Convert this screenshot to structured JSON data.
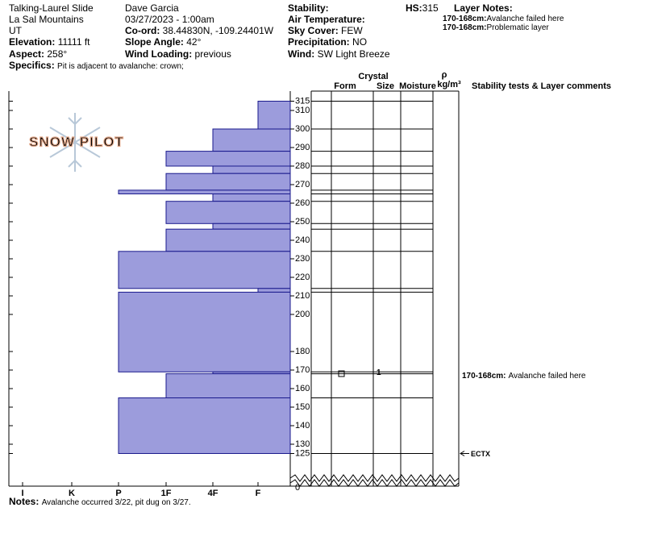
{
  "header": {
    "pit_name": "Talking-Laurel Slide",
    "range": "La Sal Mountains",
    "state": "UT",
    "elevation": {
      "label": "Elevation:",
      "value": "11111 ft"
    },
    "aspect": {
      "label": "Aspect:",
      "value": "258°"
    },
    "observer": "Dave Garcia",
    "datetime": "03/27/2023 - 1:00am",
    "coord": {
      "label": "Co-ord:",
      "value": "38.44830N, -109.24401W"
    },
    "slope": {
      "label": "Slope Angle:",
      "value": "42°"
    },
    "wind_loading": {
      "label": "Wind Loading:",
      "value": "previous"
    },
    "stability": {
      "label": "Stability:"
    },
    "air_temperature": {
      "label": "Air Temperature:"
    },
    "sky": {
      "label": "Sky Cover:",
      "value": "FEW"
    },
    "precip": {
      "label": "Precipitation:",
      "value": "NO"
    },
    "wind": {
      "label": "Wind:",
      "value": "SW Light Breeze"
    },
    "hs": {
      "label": "HS:",
      "value": 315
    },
    "specifics": {
      "label": "Specifics:",
      "value": "Pit is adjacent to avalanche: crown;"
    }
  },
  "layer_notes": {
    "title": "Layer Notes:",
    "items": [
      {
        "range": "170-168cm:",
        "text": "Avalanche failed here"
      },
      {
        "range": "170-168cm:",
        "text": "Problematic layer"
      }
    ]
  },
  "columns": {
    "crystal": "Crystal",
    "form": "Form",
    "size": "Size",
    "moisture": "Moisture",
    "rho": "ρ",
    "density_unit": "kg/m³",
    "comments": "Stability tests & Layer comments"
  },
  "logo": "SNOW PILOT",
  "depth_axis": {
    "ticks": [
      315,
      310,
      300,
      290,
      280,
      270,
      260,
      250,
      240,
      230,
      220,
      210,
      200,
      180,
      170,
      160,
      150,
      140,
      130,
      125
    ],
    "base": 0
  },
  "hardness_axis": [
    "I",
    "K",
    "P",
    "1F",
    "4F",
    "F"
  ],
  "layers": [
    {
      "top": 315,
      "bottom": 300,
      "hardness": "F"
    },
    {
      "top": 300,
      "bottom": 288,
      "hardness": "4F"
    },
    {
      "top": 288,
      "bottom": 280,
      "hardness": "1F"
    },
    {
      "top": 280,
      "bottom": 276,
      "hardness": "4F"
    },
    {
      "top": 276,
      "bottom": 267,
      "hardness": "1F"
    },
    {
      "top": 267,
      "bottom": 265,
      "hardness": "P"
    },
    {
      "top": 265,
      "bottom": 261,
      "hardness": "4F"
    },
    {
      "top": 261,
      "bottom": 249,
      "hardness": "1F"
    },
    {
      "top": 249,
      "bottom": 246,
      "hardness": "4F"
    },
    {
      "top": 246,
      "bottom": 234,
      "hardness": "1F"
    },
    {
      "top": 234,
      "bottom": 214,
      "hardness": "P"
    },
    {
      "top": 214,
      "bottom": 212,
      "hardness": "F"
    },
    {
      "top": 212,
      "bottom": 169,
      "hardness": "P"
    },
    {
      "top": 169,
      "bottom": 168,
      "hardness": "4F"
    },
    {
      "top": 168,
      "bottom": 155,
      "hardness": "1F"
    },
    {
      "top": 155,
      "bottom": 125,
      "hardness": "P"
    }
  ],
  "crystal_layers": [
    {
      "top": 170,
      "bottom": 168,
      "size": 1
    }
  ],
  "comments": [
    {
      "top": 170,
      "bottom": 168,
      "range": "170-168cm:",
      "text": "Avalanche failed here"
    }
  ],
  "tests": [
    {
      "label": "ECTX",
      "depth": 125
    }
  ],
  "notes": {
    "label": "Notes:",
    "text": "Avalanche occurred 3/22, pit dug on 3/27."
  }
}
